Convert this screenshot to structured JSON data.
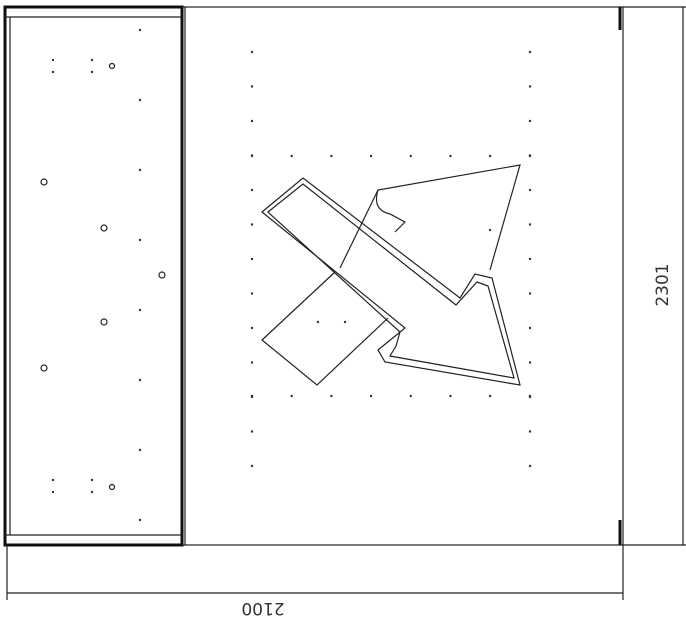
{
  "dimensions": {
    "height": "2301",
    "width": "2100"
  }
}
